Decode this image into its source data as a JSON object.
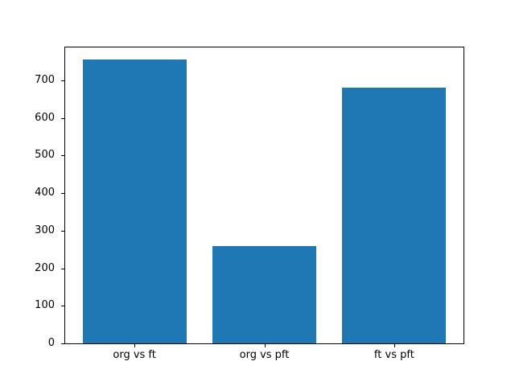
{
  "figure": {
    "background_color": "#ffffff"
  },
  "chart_data": {
    "type": "bar",
    "categories": [
      "org vs ft",
      "org vs pft",
      "ft vs pft"
    ],
    "values": [
      755,
      260,
      680
    ],
    "title": "",
    "xlabel": "",
    "ylabel": "",
    "yticks": [
      0,
      100,
      200,
      300,
      400,
      500,
      600,
      700
    ],
    "ylim": [
      0,
      790
    ],
    "xlim": [
      -0.54,
      2.54
    ],
    "bar_width": 0.8,
    "bar_color": "#1f77b4",
    "axis_color": "#000000",
    "text_color": "#000000",
    "grid": false,
    "legend": "none"
  }
}
